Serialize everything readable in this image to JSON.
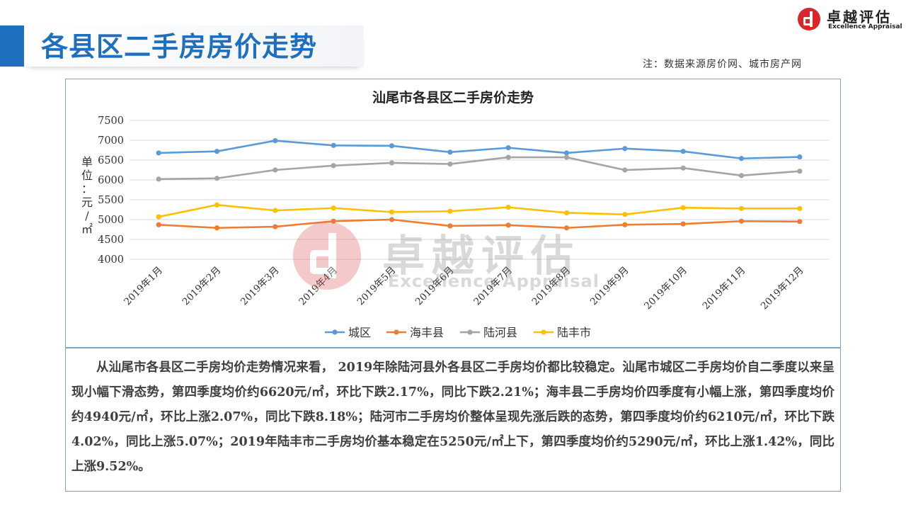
{
  "header": {
    "title": "各县区二手房房价走势",
    "source_note": "注：数据来源房价网、城市房产网"
  },
  "logo": {
    "name": "卓越评估",
    "subtitle": "Excellence Appraisal",
    "color": "#d9262b"
  },
  "watermark": {
    "name": "卓越评估",
    "subtitle": "Excellence Appraisal"
  },
  "summary": {
    "text": "从汕尾市各县区二手房均价走势情况来看， 2019年除陆河县外各县区二手房均价都比较稳定。汕尾市城区二手房均价自二季度以来呈现小幅下滑态势，第四季度均价约6620元/㎡，环比下跌2.17%，同比下跌2.21%；海丰县二手房均价四季度有小幅上涨，第四季度均价约4940元/㎡，环比上涨2.07%，同比下跌8.18%；陆河市二手房均价整体呈现先涨后跌的态势，第四季度均价约6210元/㎡，环比下跌4.02%，同比上涨5.07%；2019年陆丰市二手房均价基本稳定在5250元/㎡上下，第四季度均价约5290元/㎡，环比上涨1.42%，同比上涨9.52%。"
  },
  "chart_data": {
    "type": "line",
    "title": "汕尾市各县区二手房价走势",
    "ylabel": "单位：元/㎡",
    "ylim": [
      4000,
      7500
    ],
    "yticks": [
      4000,
      4500,
      5000,
      5500,
      6000,
      6500,
      7000,
      7500
    ],
    "grid": true,
    "legend_position": "bottom",
    "categories": [
      "2019年1月",
      "2019年2月",
      "2019年3月",
      "2019年4月",
      "2019年5月",
      "2019年6月",
      "2019年7月",
      "2019年8月",
      "2019年9月",
      "2019年10月",
      "2019年11月",
      "2019年12月"
    ],
    "series": [
      {
        "name": "城区",
        "color": "#5b9bd5",
        "values": [
          6680,
          6720,
          6990,
          6870,
          6860,
          6700,
          6810,
          6680,
          6790,
          6720,
          6540,
          6580
        ]
      },
      {
        "name": "海丰县",
        "color": "#ed7d31",
        "values": [
          4870,
          4790,
          4820,
          4960,
          5000,
          4840,
          4860,
          4790,
          4870,
          4890,
          4960,
          4950
        ]
      },
      {
        "name": "陆河县",
        "color": "#a5a5a5",
        "values": [
          6020,
          6040,
          6250,
          6360,
          6430,
          6400,
          6570,
          6570,
          6250,
          6300,
          6110,
          6220
        ]
      },
      {
        "name": "陆丰市",
        "color": "#ffc000",
        "values": [
          5070,
          5370,
          5230,
          5290,
          5190,
          5210,
          5310,
          5170,
          5130,
          5300,
          5280,
          5280
        ]
      }
    ]
  }
}
